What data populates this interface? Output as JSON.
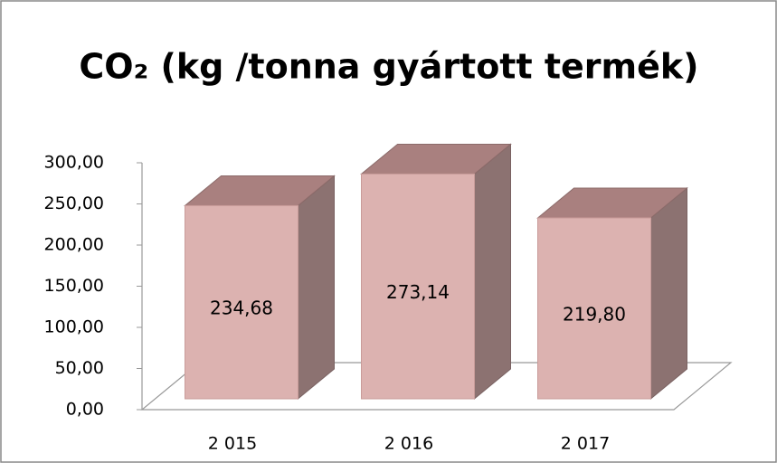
{
  "chart_data": {
    "type": "bar3d",
    "title": "CO₂   (kg /tonna gyártott termék)",
    "categories": [
      "2 015",
      "2 016",
      "2 017"
    ],
    "values": [
      234.68,
      273.14,
      219.8
    ],
    "value_labels": [
      "234,68",
      "273,14",
      "219,80"
    ],
    "color": "#dcb2b0",
    "ylim": [
      0,
      300
    ],
    "yticks": [
      {
        "value": 0,
        "label": "0,00"
      },
      {
        "value": 50,
        "label": "50,00"
      },
      {
        "value": 100,
        "label": "100,00"
      },
      {
        "value": 150,
        "label": "150,00"
      },
      {
        "value": 200,
        "label": "200,00"
      },
      {
        "value": 250,
        "label": "250,00"
      },
      {
        "value": 300,
        "label": "300,00"
      }
    ]
  }
}
